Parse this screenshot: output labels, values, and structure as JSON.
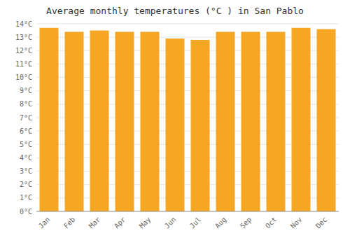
{
  "chart_data": {
    "type": "bar",
    "title": "Average monthly temperatures (°C ) in San Pablo",
    "categories": [
      "Jan",
      "Feb",
      "Mar",
      "Apr",
      "May",
      "Jun",
      "Jul",
      "Aug",
      "Sep",
      "Oct",
      "Nov",
      "Dec"
    ],
    "values": [
      13.7,
      13.4,
      13.5,
      13.4,
      13.4,
      12.9,
      12.8,
      13.4,
      13.4,
      13.4,
      13.7,
      13.6
    ],
    "color": "#F5A623",
    "ylim": [
      0,
      14
    ],
    "yticks": [
      {
        "value": 0,
        "label": "0°C"
      },
      {
        "value": 1,
        "label": "1°C"
      },
      {
        "value": 2,
        "label": "2°C"
      },
      {
        "value": 3,
        "label": "3°C"
      },
      {
        "value": 4,
        "label": "4°C"
      },
      {
        "value": 5,
        "label": "5°C"
      },
      {
        "value": 6,
        "label": "6°C"
      },
      {
        "value": 7,
        "label": "7°C"
      },
      {
        "value": 8,
        "label": "8°C"
      },
      {
        "value": 9,
        "label": "9°C"
      },
      {
        "value": 10,
        "label": "10°C"
      },
      {
        "value": 11,
        "label": "11°C"
      },
      {
        "value": 12,
        "label": "12°C"
      },
      {
        "value": 13,
        "label": "13°C"
      },
      {
        "value": 14,
        "label": "14°C"
      }
    ],
    "grid": true
  }
}
